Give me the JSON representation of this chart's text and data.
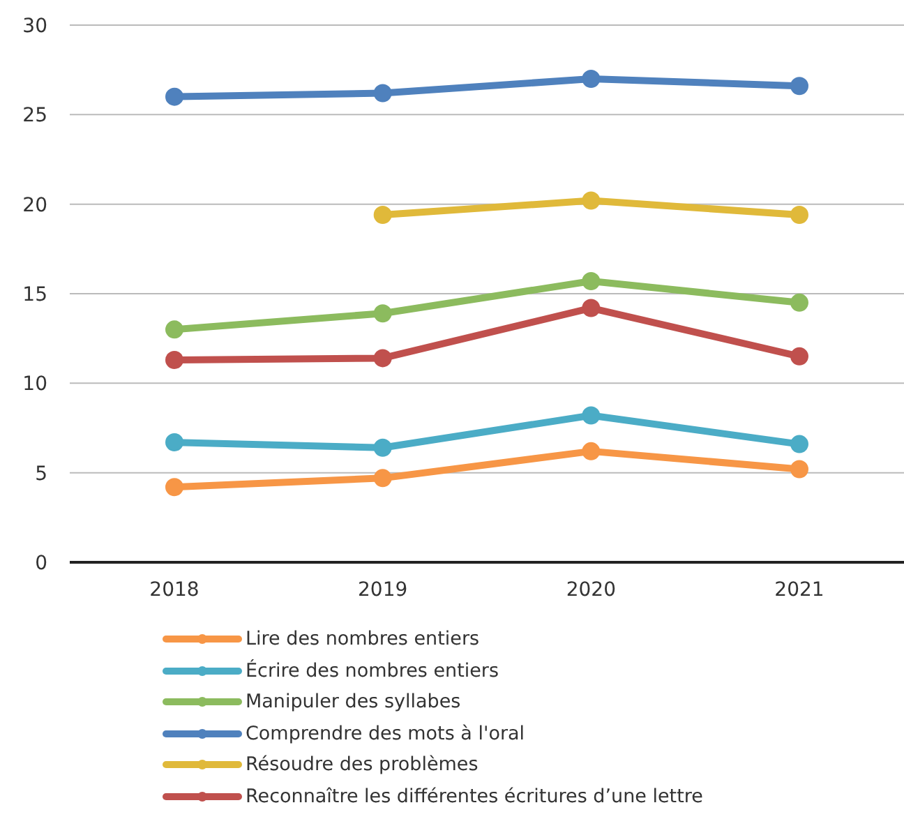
{
  "chart_data": {
    "type": "line",
    "categories": [
      "2018",
      "2019",
      "2020",
      "2021"
    ],
    "series": [
      {
        "name": "Lire des nombres entiers",
        "color": "#f79646",
        "values": [
          4.2,
          4.7,
          6.2,
          5.2
        ]
      },
      {
        "name": "Écrire des nombres entiers",
        "color": "#4bacc6",
        "values": [
          6.7,
          6.4,
          8.2,
          6.6
        ]
      },
      {
        "name": "Manipuler des syllabes",
        "color": "#8cbb5e",
        "values": [
          13.0,
          13.9,
          15.7,
          14.5
        ]
      },
      {
        "name": "Comprendre des mots à l'oral",
        "color": "#4f81bd",
        "values": [
          26.0,
          26.2,
          27.0,
          26.6
        ]
      },
      {
        "name": "Résoudre des problèmes",
        "color": "#e0b93a",
        "values": [
          null,
          19.4,
          20.2,
          19.4
        ]
      },
      {
        "name": "Reconnaître les différentes écritures d’une lettre",
        "color": "#c0504d",
        "values": [
          11.3,
          11.4,
          14.2,
          11.5
        ]
      }
    ],
    "ylim": [
      0,
      30
    ],
    "yticks": [
      0,
      5,
      10,
      15,
      20,
      25,
      30
    ],
    "grid": "y",
    "legend": "bottom",
    "marker": "circle",
    "line_style": "solid"
  }
}
